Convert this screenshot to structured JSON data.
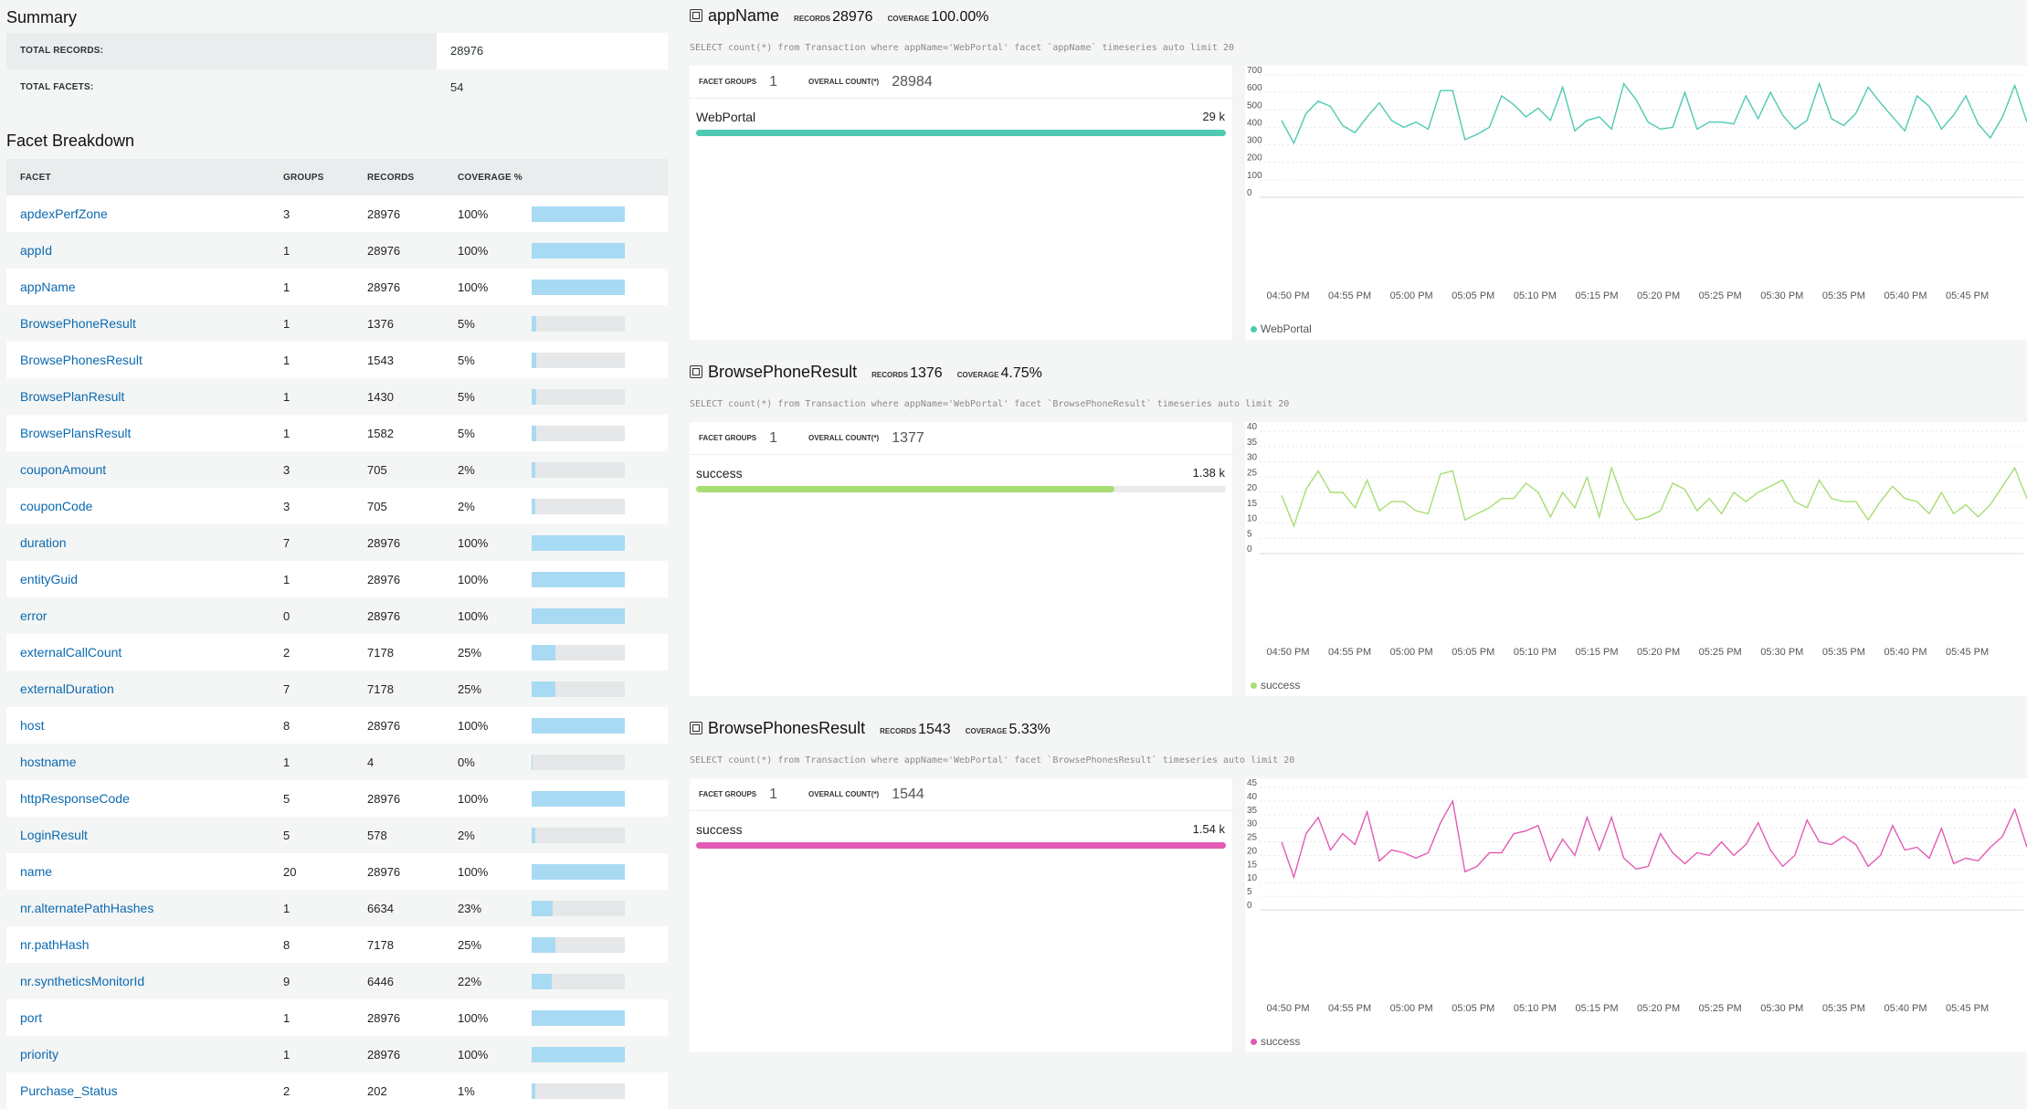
{
  "summary": {
    "title": "Summary",
    "rows": [
      {
        "label": "TOTAL RECORDS:",
        "value": "28976"
      },
      {
        "label": "TOTAL FACETS:",
        "value": "54"
      }
    ]
  },
  "facet_breakdown": {
    "title": "Facet Breakdown",
    "headers": [
      "FACET",
      "GROUPS",
      "RECORDS",
      "COVERAGE %"
    ],
    "rows": [
      {
        "name": "apdexPerfZone",
        "groups": "3",
        "records": "28976",
        "coverage": "100%",
        "pct": 100
      },
      {
        "name": "appId",
        "groups": "1",
        "records": "28976",
        "coverage": "100%",
        "pct": 100
      },
      {
        "name": "appName",
        "groups": "1",
        "records": "28976",
        "coverage": "100%",
        "pct": 100
      },
      {
        "name": "BrowsePhoneResult",
        "groups": "1",
        "records": "1376",
        "coverage": "5%",
        "pct": 5
      },
      {
        "name": "BrowsePhonesResult",
        "groups": "1",
        "records": "1543",
        "coverage": "5%",
        "pct": 5
      },
      {
        "name": "BrowsePlanResult",
        "groups": "1",
        "records": "1430",
        "coverage": "5%",
        "pct": 5
      },
      {
        "name": "BrowsePlansResult",
        "groups": "1",
        "records": "1582",
        "coverage": "5%",
        "pct": 5
      },
      {
        "name": "couponAmount",
        "groups": "3",
        "records": "705",
        "coverage": "2%",
        "pct": 2
      },
      {
        "name": "couponCode",
        "groups": "3",
        "records": "705",
        "coverage": "2%",
        "pct": 2
      },
      {
        "name": "duration",
        "groups": "7",
        "records": "28976",
        "coverage": "100%",
        "pct": 100
      },
      {
        "name": "entityGuid",
        "groups": "1",
        "records": "28976",
        "coverage": "100%",
        "pct": 100
      },
      {
        "name": "error",
        "groups": "0",
        "records": "28976",
        "coverage": "100%",
        "pct": 100
      },
      {
        "name": "externalCallCount",
        "groups": "2",
        "records": "7178",
        "coverage": "25%",
        "pct": 25
      },
      {
        "name": "externalDuration",
        "groups": "7",
        "records": "7178",
        "coverage": "25%",
        "pct": 25
      },
      {
        "name": "host",
        "groups": "8",
        "records": "28976",
        "coverage": "100%",
        "pct": 100
      },
      {
        "name": "hostname",
        "groups": "1",
        "records": "4",
        "coverage": "0%",
        "pct": 0
      },
      {
        "name": "httpResponseCode",
        "groups": "5",
        "records": "28976",
        "coverage": "100%",
        "pct": 100
      },
      {
        "name": "LoginResult",
        "groups": "5",
        "records": "578",
        "coverage": "2%",
        "pct": 2
      },
      {
        "name": "name",
        "groups": "20",
        "records": "28976",
        "coverage": "100%",
        "pct": 100
      },
      {
        "name": "nr.alternatePathHashes",
        "groups": "1",
        "records": "6634",
        "coverage": "23%",
        "pct": 23
      },
      {
        "name": "nr.pathHash",
        "groups": "8",
        "records": "7178",
        "coverage": "25%",
        "pct": 25
      },
      {
        "name": "nr.syntheticsMonitorId",
        "groups": "9",
        "records": "6446",
        "coverage": "22%",
        "pct": 22
      },
      {
        "name": "port",
        "groups": "1",
        "records": "28976",
        "coverage": "100%",
        "pct": 100
      },
      {
        "name": "priority",
        "groups": "1",
        "records": "28976",
        "coverage": "100%",
        "pct": 100
      },
      {
        "name": "Purchase_Status",
        "groups": "2",
        "records": "202",
        "coverage": "1%",
        "pct": 1
      }
    ]
  },
  "panels": [
    {
      "title": "appName",
      "records_label": "RECORDS",
      "records": "28976",
      "coverage_label": "COVERAGE",
      "coverage": "100.00%",
      "query": "SELECT count(*) from Transaction where appName='WebPortal' facet `appName` timeseries auto limit 20",
      "facet_groups_label": "FACET GROUPS",
      "facet_groups": "1",
      "overall_label": "OVERALL COUNT(*)",
      "overall": "28984",
      "item_label": "WebPortal",
      "item_value": "29 k",
      "item_fill": 1.0,
      "color": "#4fc9b2"
    },
    {
      "title": "BrowsePhoneResult",
      "records_label": "RECORDS",
      "records": "1376",
      "coverage_label": "COVERAGE",
      "coverage": "4.75%",
      "query": "SELECT count(*) from Transaction where appName='WebPortal' facet `BrowsePhoneResult` timeseries auto limit 20",
      "facet_groups_label": "FACET GROUPS",
      "facet_groups": "1",
      "overall_label": "OVERALL COUNT(*)",
      "overall": "1377",
      "item_label": "success",
      "item_value": "1.38 k",
      "item_fill": 0.79,
      "color": "#a8dd74"
    },
    {
      "title": "BrowsePhonesResult",
      "records_label": "RECORDS",
      "records": "1543",
      "coverage_label": "COVERAGE",
      "coverage": "5.33%",
      "query": "SELECT count(*) from Transaction where appName='WebPortal' facet `BrowsePhonesResult` timeseries auto limit 20",
      "facet_groups_label": "FACET GROUPS",
      "facet_groups": "1",
      "overall_label": "OVERALL COUNT(*)",
      "overall": "1544",
      "item_label": "success",
      "item_value": "1.54 k",
      "item_fill": 1.0,
      "color": "#e25bb4"
    }
  ],
  "chart_data": [
    {
      "type": "line",
      "x_ticks": [
        "04:50 PM",
        "04:55 PM",
        "05:00 PM",
        "05:05 PM",
        "05:10 PM",
        "05:15 PM",
        "05:20 PM",
        "05:25 PM",
        "05:30 PM",
        "05:35 PM",
        "05:40 PM",
        "05:45 PM"
      ],
      "y_ticks": [
        0,
        100,
        200,
        300,
        400,
        500,
        600,
        700
      ],
      "ylim": [
        0,
        700
      ],
      "legend": "WebPortal",
      "color": "#4fc9b2",
      "values": [
        440,
        310,
        480,
        550,
        520,
        410,
        370,
        460,
        540,
        440,
        400,
        430,
        390,
        610,
        610,
        330,
        360,
        400,
        580,
        530,
        460,
        510,
        440,
        630,
        380,
        440,
        460,
        390,
        650,
        560,
        430,
        390,
        400,
        600,
        390,
        430,
        430,
        420,
        580,
        450,
        600,
        470,
        390,
        440,
        650,
        450,
        410,
        480,
        630,
        540,
        460,
        380,
        580,
        520,
        390,
        470,
        580,
        420,
        340,
        460,
        640,
        430
      ]
    },
    {
      "type": "line",
      "x_ticks": [
        "04:50 PM",
        "04:55 PM",
        "05:00 PM",
        "05:05 PM",
        "05:10 PM",
        "05:15 PM",
        "05:20 PM",
        "05:25 PM",
        "05:30 PM",
        "05:35 PM",
        "05:40 PM",
        "05:45 PM"
      ],
      "y_ticks": [
        0,
        5,
        10,
        15,
        20,
        25,
        30,
        35,
        40
      ],
      "ylim": [
        0,
        40
      ],
      "legend": "success",
      "color": "#a8dd74",
      "values": [
        19,
        9,
        21,
        27,
        20,
        20,
        15,
        24,
        14,
        17,
        17,
        14,
        13,
        26,
        27,
        11,
        13,
        15,
        18,
        18,
        23,
        20,
        12,
        20,
        15,
        25,
        12,
        28,
        17,
        11,
        12,
        14,
        23,
        21,
        14,
        18,
        13,
        20,
        17,
        20,
        22,
        24,
        17,
        15,
        24,
        18,
        17,
        17,
        11,
        17,
        22,
        18,
        17,
        13,
        20,
        13,
        16,
        12,
        16,
        22,
        28,
        18
      ]
    },
    {
      "type": "line",
      "x_ticks": [
        "04:50 PM",
        "04:55 PM",
        "05:00 PM",
        "05:05 PM",
        "05:10 PM",
        "05:15 PM",
        "05:20 PM",
        "05:25 PM",
        "05:30 PM",
        "05:35 PM",
        "05:40 PM",
        "05:45 PM"
      ],
      "y_ticks": [
        0,
        5,
        10,
        15,
        20,
        25,
        30,
        35,
        40,
        45
      ],
      "ylim": [
        0,
        45
      ],
      "legend": "success",
      "color": "#e25bb4",
      "values": [
        25,
        12,
        28,
        34,
        22,
        28,
        24,
        36,
        18,
        22,
        21,
        19,
        21,
        32,
        40,
        14,
        16,
        21,
        21,
        28,
        29,
        31,
        18,
        26,
        20,
        34,
        22,
        34,
        19,
        15,
        16,
        28,
        21,
        17,
        21,
        20,
        25,
        20,
        24,
        32,
        22,
        16,
        20,
        33,
        25,
        24,
        27,
        24,
        16,
        20,
        31,
        22,
        23,
        19,
        30,
        17,
        19,
        18,
        23,
        27,
        37,
        23
      ]
    }
  ]
}
